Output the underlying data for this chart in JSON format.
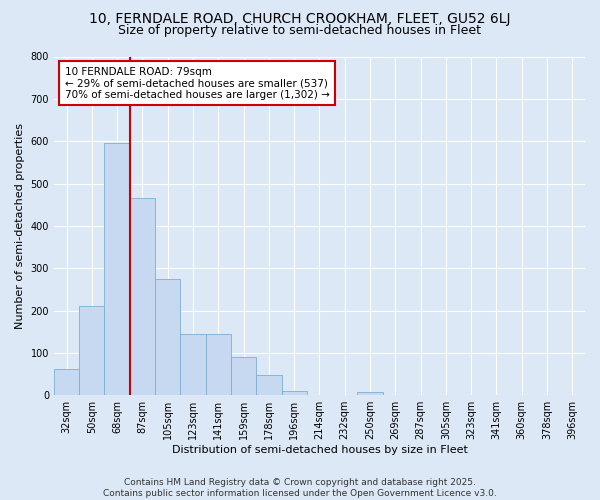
{
  "title_line1": "10, FERNDALE ROAD, CHURCH CROOKHAM, FLEET, GU52 6LJ",
  "title_line2": "Size of property relative to semi-detached houses in Fleet",
  "xlabel": "Distribution of semi-detached houses by size in Fleet",
  "ylabel": "Number of semi-detached properties",
  "categories": [
    "32sqm",
    "50sqm",
    "68sqm",
    "87sqm",
    "105sqm",
    "123sqm",
    "141sqm",
    "159sqm",
    "178sqm",
    "196sqm",
    "214sqm",
    "232sqm",
    "250sqm",
    "269sqm",
    "287sqm",
    "305sqm",
    "323sqm",
    "341sqm",
    "360sqm",
    "378sqm",
    "396sqm"
  ],
  "values": [
    62,
    210,
    595,
    465,
    275,
    145,
    145,
    90,
    47,
    10,
    0,
    0,
    8,
    0,
    0,
    0,
    0,
    0,
    0,
    0,
    0
  ],
  "bar_color": "#c6d9f0",
  "bar_edge_color": "#7bafd4",
  "vline_color": "#cc0000",
  "vline_x_index": 2.5,
  "annotation_text": "10 FERNDALE ROAD: 79sqm\n← 29% of semi-detached houses are smaller (537)\n70% of semi-detached houses are larger (1,302) →",
  "annotation_box_facecolor": "#ffffff",
  "annotation_box_edgecolor": "#cc0000",
  "ylim": [
    0,
    800
  ],
  "yticks": [
    0,
    100,
    200,
    300,
    400,
    500,
    600,
    700,
    800
  ],
  "bg_color": "#dce8f5",
  "plot_bg_color": "#dce8f5",
  "footer": "Contains HM Land Registry data © Crown copyright and database right 2025.\nContains public sector information licensed under the Open Government Licence v3.0.",
  "title_fontsize": 10,
  "subtitle_fontsize": 9,
  "axis_label_fontsize": 8,
  "tick_fontsize": 7,
  "annotation_fontsize": 7.5,
  "footer_fontsize": 6.5
}
